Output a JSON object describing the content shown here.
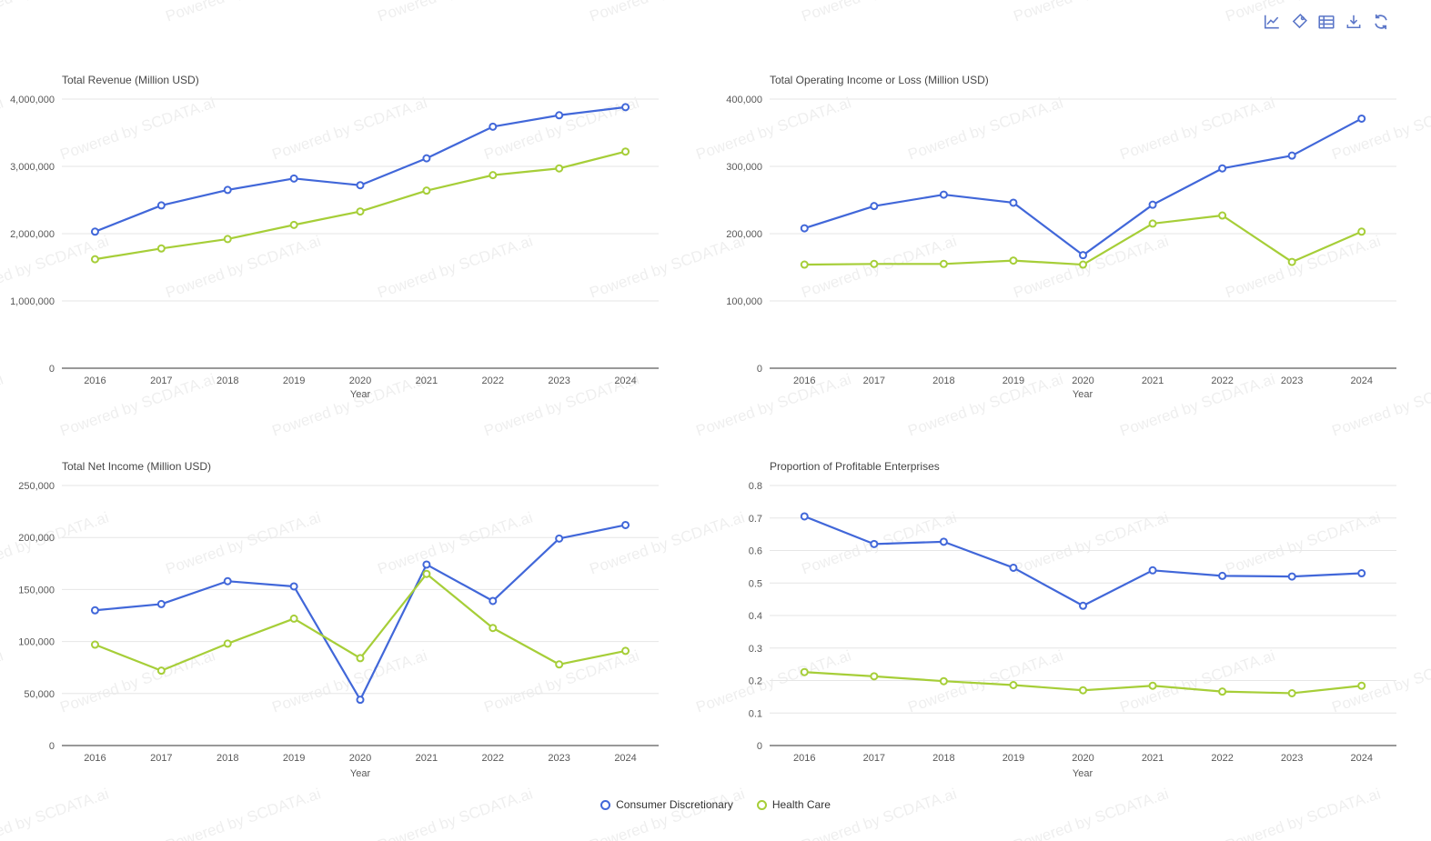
{
  "watermark": {
    "text": "Powered by SCDATA.ai"
  },
  "toolbar": {
    "color": "#5b76c8",
    "icons": [
      {
        "name": "line-chart-icon"
      },
      {
        "name": "tag-icon"
      },
      {
        "name": "data-table-icon"
      },
      {
        "name": "download-icon"
      },
      {
        "name": "refresh-icon"
      }
    ]
  },
  "legend": {
    "items": [
      {
        "label": "Consumer Discretionary",
        "color": "#4167d9"
      },
      {
        "label": "Health Care",
        "color": "#a6ce38"
      }
    ]
  },
  "chart_data": [
    {
      "type": "line",
      "title": "Total Revenue (Million USD)",
      "xlabel": "Year",
      "categories": [
        "2016",
        "2017",
        "2018",
        "2019",
        "2020",
        "2021",
        "2022",
        "2023",
        "2024"
      ],
      "ylim": [
        0,
        4000000
      ],
      "ytick_values": [
        0,
        1000000,
        2000000,
        3000000,
        4000000
      ],
      "ytick_labels": [
        "0",
        "1,000,000",
        "2,000,000",
        "3,000,000",
        "4,000,000"
      ],
      "grid": true,
      "legend_position": "bottom",
      "series": [
        {
          "name": "Consumer Discretionary",
          "color": "#4167d9",
          "values": [
            2030000,
            2420000,
            2650000,
            2820000,
            2720000,
            3120000,
            3590000,
            3760000,
            3880000
          ]
        },
        {
          "name": "Health Care",
          "color": "#a6ce38",
          "values": [
            1620000,
            1780000,
            1920000,
            2130000,
            2330000,
            2640000,
            2870000,
            2970000,
            3220000
          ]
        }
      ]
    },
    {
      "type": "line",
      "title": "Total Operating Income or Loss (Million USD)",
      "xlabel": "Year",
      "categories": [
        "2016",
        "2017",
        "2018",
        "2019",
        "2020",
        "2021",
        "2022",
        "2023",
        "2024"
      ],
      "ylim": [
        0,
        400000
      ],
      "ytick_values": [
        0,
        100000,
        200000,
        300000,
        400000
      ],
      "ytick_labels": [
        "0",
        "100,000",
        "200,000",
        "300,000",
        "400,000"
      ],
      "grid": true,
      "legend_position": "bottom",
      "series": [
        {
          "name": "Consumer Discretionary",
          "color": "#4167d9",
          "values": [
            208000,
            241000,
            258000,
            246000,
            168000,
            243000,
            297000,
            316000,
            371000
          ]
        },
        {
          "name": "Health Care",
          "color": "#a6ce38",
          "values": [
            154000,
            155000,
            155000,
            160000,
            154000,
            215000,
            227000,
            158000,
            203000
          ]
        }
      ]
    },
    {
      "type": "line",
      "title": "Total Net Income (Million USD)",
      "xlabel": "Year",
      "categories": [
        "2016",
        "2017",
        "2018",
        "2019",
        "2020",
        "2021",
        "2022",
        "2023",
        "2024"
      ],
      "ylim": [
        0,
        250000
      ],
      "ytick_values": [
        0,
        50000,
        100000,
        150000,
        200000,
        250000
      ],
      "ytick_labels": [
        "0",
        "50,000",
        "100,000",
        "150,000",
        "200,000",
        "250,000"
      ],
      "grid": true,
      "legend_position": "bottom",
      "series": [
        {
          "name": "Consumer Discretionary",
          "color": "#4167d9",
          "values": [
            130000,
            136000,
            158000,
            153000,
            44000,
            174000,
            139000,
            199000,
            212000
          ]
        },
        {
          "name": "Health Care",
          "color": "#a6ce38",
          "values": [
            97000,
            72000,
            98000,
            122000,
            84000,
            165000,
            113000,
            78000,
            91000
          ]
        }
      ]
    },
    {
      "type": "line",
      "title": "Proportion of Profitable Enterprises",
      "xlabel": "Year",
      "categories": [
        "2016",
        "2017",
        "2018",
        "2019",
        "2020",
        "2021",
        "2022",
        "2023",
        "2024"
      ],
      "ylim": [
        0,
        0.8
      ],
      "ytick_values": [
        0,
        0.1,
        0.2,
        0.3,
        0.4,
        0.5,
        0.6,
        0.7,
        0.8
      ],
      "ytick_labels": [
        "0",
        "0.1",
        "0.2",
        "0.3",
        "0.4",
        "0.5",
        "0.6",
        "0.7",
        "0.8"
      ],
      "grid": true,
      "legend_position": "bottom",
      "series": [
        {
          "name": "Consumer Discretionary",
          "color": "#4167d9",
          "values": [
            0.705,
            0.62,
            0.627,
            0.547,
            0.43,
            0.539,
            0.522,
            0.52,
            0.53
          ]
        },
        {
          "name": "Health Care",
          "color": "#a6ce38",
          "values": [
            0.226,
            0.213,
            0.198,
            0.186,
            0.17,
            0.184,
            0.166,
            0.161,
            0.184
          ]
        }
      ]
    }
  ]
}
